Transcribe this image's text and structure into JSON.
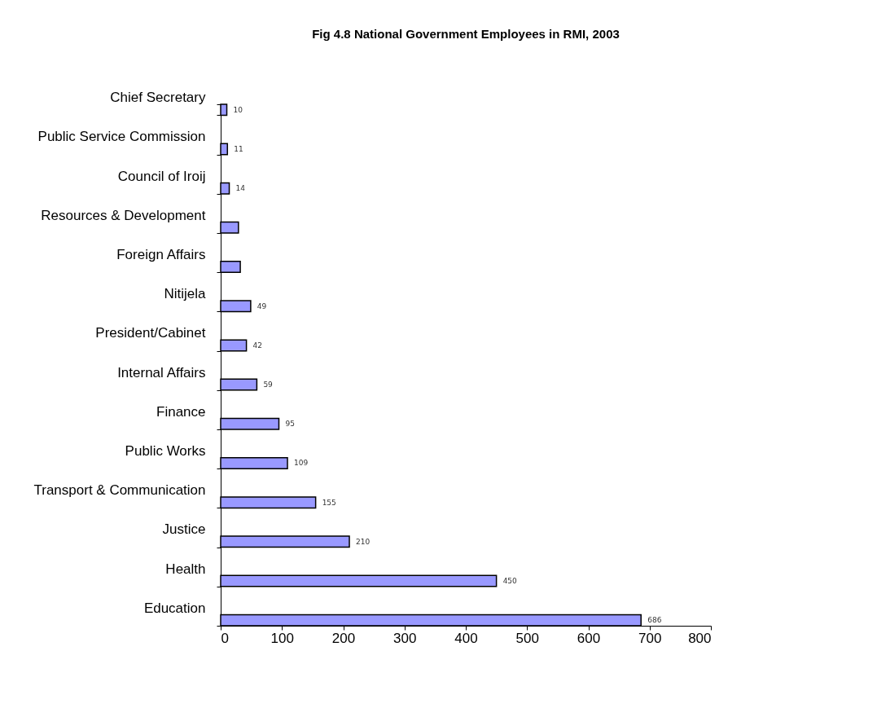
{
  "chart_data": {
    "type": "bar",
    "orientation": "horizontal",
    "title": "Fig 4.8   National Government Employees in RMI, 2003",
    "categories": [
      "Chief Secretary",
      "Public Service Commission",
      "Council of Iroij",
      "Resources & Development",
      "Foreign Affairs",
      "Nitijela",
      "President/Cabinet",
      "Internal Affairs",
      "Finance",
      "Public Works",
      "Transport & Communication",
      "Justice",
      "Health",
      "Education"
    ],
    "values": [
      10,
      11,
      14,
      29,
      32,
      49,
      42,
      59,
      95,
      109,
      155,
      210,
      450,
      686
    ],
    "value_labels": [
      "10",
      "11",
      "14",
      null,
      null,
      "49",
      "42",
      "59",
      "95",
      "109",
      "155",
      "210",
      "450",
      "686"
    ],
    "color": "#9999ff",
    "xlim": [
      0,
      800
    ],
    "xticks": [
      0,
      100,
      200,
      300,
      400,
      500,
      600,
      700,
      800
    ],
    "grid": false
  }
}
